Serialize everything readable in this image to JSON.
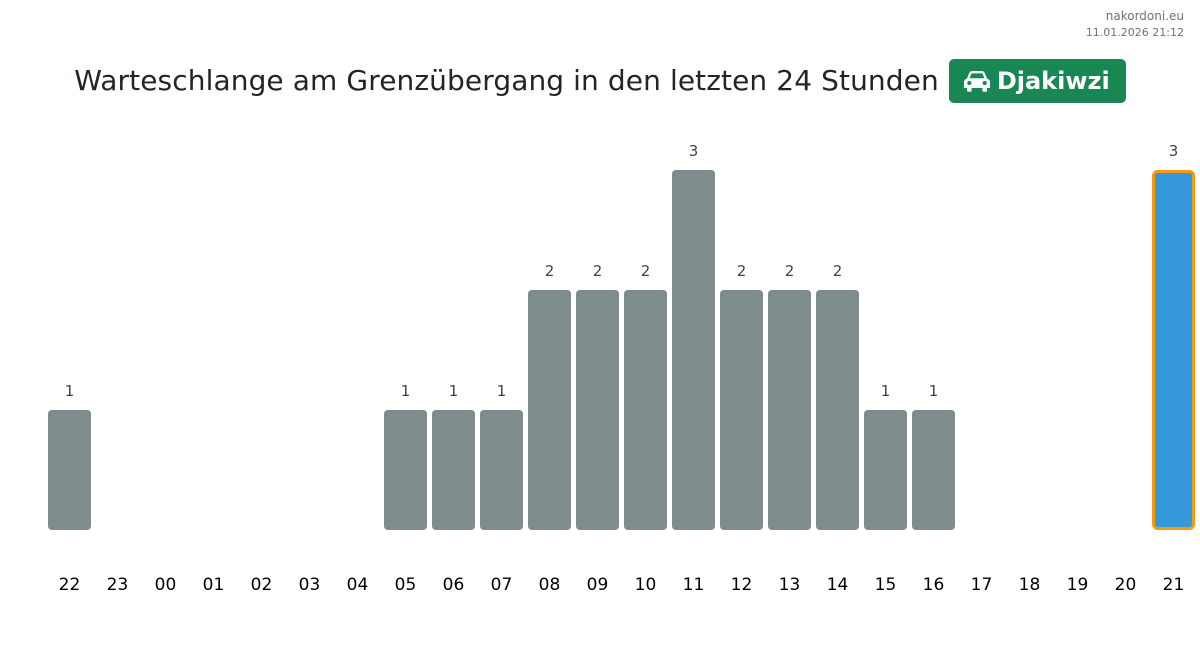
{
  "site": {
    "domain": "nakordoni.eu",
    "timestamp": "11.01.2026 21:12"
  },
  "header": {
    "title": "Warteschlange am Grenzübergang in den letzten 24 Stunden",
    "badge_icon": "car-icon",
    "badge_label": "Djakiwzi",
    "badge_color": "#198754"
  },
  "chart_data": {
    "type": "bar",
    "title": "Warteschlange am Grenzübergang in den letzten 24 Stunden",
    "xlabel": "",
    "ylabel": "",
    "categories": [
      "22",
      "23",
      "00",
      "01",
      "02",
      "03",
      "04",
      "05",
      "06",
      "07",
      "08",
      "09",
      "10",
      "11",
      "12",
      "13",
      "14",
      "15",
      "16",
      "17",
      "18",
      "19",
      "20",
      "21"
    ],
    "values": [
      1,
      0,
      0,
      0,
      0,
      0,
      0,
      1,
      1,
      1,
      2,
      2,
      2,
      3,
      2,
      2,
      2,
      1,
      1,
      0,
      0,
      0,
      0,
      3
    ],
    "ylim": [
      0,
      3
    ],
    "grid": false,
    "highlight_index": 23,
    "colors": {
      "bar": "#7f8c8d",
      "highlight": "#3498db",
      "highlight_border": "#f39c12"
    }
  }
}
